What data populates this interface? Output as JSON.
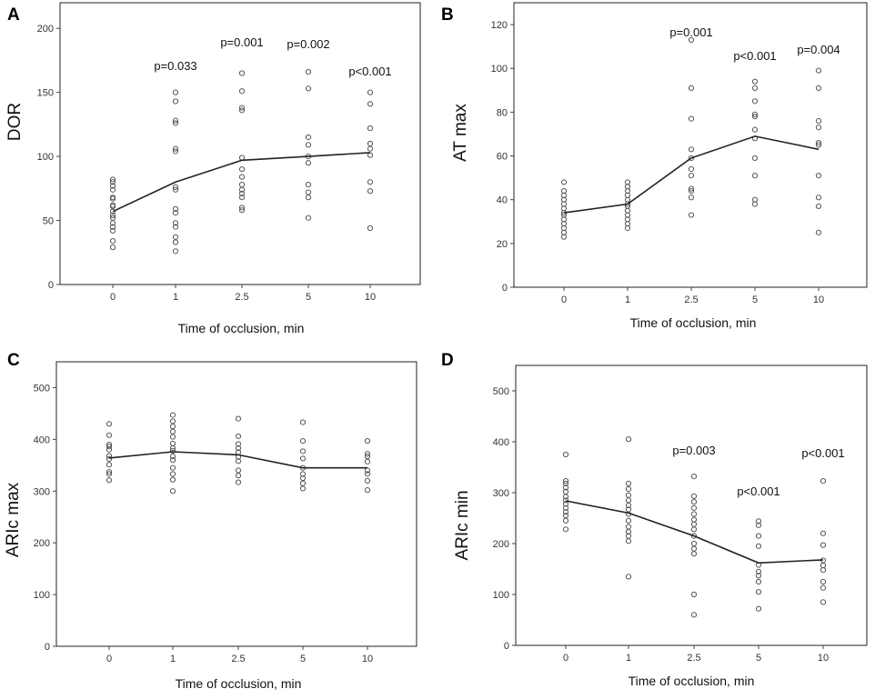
{
  "chart_data": [
    {
      "panel": "A",
      "type": "scatter",
      "xlabel": "Time of occlusion, min",
      "ylabel": "DOR",
      "categories": [
        "0",
        "1",
        "2.5",
        "5",
        "10"
      ],
      "ylim": [
        0,
        220
      ],
      "yticks": [
        0,
        50,
        100,
        150,
        200
      ],
      "points": [
        [
          29,
          34,
          42,
          45,
          48,
          52,
          54,
          57,
          61,
          62,
          67,
          68,
          74,
          77,
          80,
          82
        ],
        [
          26,
          33,
          37,
          45,
          48,
          56,
          59,
          74,
          76,
          104,
          106,
          126,
          128,
          143,
          150
        ],
        [
          58,
          60,
          68,
          71,
          74,
          78,
          84,
          90,
          99,
          136,
          138,
          151,
          165
        ],
        [
          52,
          68,
          72,
          78,
          95,
          100,
          109,
          115,
          153,
          166
        ],
        [
          44,
          73,
          80,
          101,
          106,
          110,
          122,
          141,
          150
        ]
      ],
      "mean": [
        57,
        80,
        97,
        100,
        103
      ],
      "annotations": [
        "",
        "p=0.033",
        "p=0.001",
        "p=0.002",
        "p<0.001"
      ]
    },
    {
      "panel": "B",
      "type": "scatter",
      "xlabel": "Time of occlusion, min",
      "ylabel": "AT max",
      "categories": [
        "0",
        "1",
        "2.5",
        "5",
        "10"
      ],
      "ylim": [
        0,
        130
      ],
      "yticks": [
        0,
        20,
        40,
        60,
        80,
        100,
        120
      ],
      "points": [
        [
          23,
          25,
          27,
          29,
          31,
          33,
          34,
          36,
          38,
          40,
          42,
          44,
          48
        ],
        [
          27,
          29,
          31,
          33,
          35,
          37,
          38,
          40,
          42,
          44,
          46,
          48
        ],
        [
          33,
          41,
          44,
          45,
          51,
          54,
          59,
          63,
          77,
          91,
          113
        ],
        [
          38,
          40,
          51,
          59,
          68,
          72,
          78,
          79,
          85,
          91,
          94
        ],
        [
          25,
          37,
          41,
          51,
          65,
          66,
          73,
          76,
          91,
          99
        ]
      ],
      "mean": [
        34,
        38,
        59,
        69,
        63
      ],
      "annotations": [
        "",
        "",
        "p=0.001",
        "p<0.001",
        "p=0.004"
      ]
    },
    {
      "panel": "C",
      "type": "scatter",
      "xlabel": "Time of occlusion, min",
      "ylabel": "ARIc max",
      "categories": [
        "0",
        "1",
        "2.5",
        "5",
        "10"
      ],
      "ylim": [
        0,
        550
      ],
      "yticks": [
        0,
        100,
        200,
        300,
        400,
        500
      ],
      "points": [
        [
          321,
          333,
          337,
          351,
          362,
          368,
          380,
          386,
          390,
          408,
          430
        ],
        [
          300,
          322,
          333,
          345,
          360,
          367,
          378,
          383,
          392,
          405,
          415,
          425,
          435,
          447
        ],
        [
          317,
          330,
          340,
          358,
          366,
          375,
          383,
          391,
          406,
          440
        ],
        [
          305,
          315,
          325,
          333,
          345,
          363,
          377,
          397,
          433
        ],
        [
          302,
          320,
          333,
          340,
          357,
          367,
          372,
          397
        ]
      ],
      "mean": [
        364,
        376,
        370,
        345,
        345
      ],
      "annotations": [
        "",
        "",
        "",
        "",
        ""
      ]
    },
    {
      "panel": "D",
      "type": "scatter",
      "xlabel": "Time of occlusion, min",
      "ylabel": "ARIc min",
      "categories": [
        "0",
        "1",
        "2.5",
        "5",
        "10"
      ],
      "ylim": [
        0,
        550
      ],
      "yticks": [
        0,
        100,
        200,
        300,
        400,
        500
      ],
      "points": [
        [
          228,
          245,
          255,
          262,
          270,
          278,
          285,
          292,
          302,
          310,
          318,
          323,
          375
        ],
        [
          135,
          205,
          215,
          223,
          233,
          245,
          258,
          267,
          275,
          285,
          295,
          307,
          318,
          405
        ],
        [
          60,
          100,
          180,
          190,
          200,
          215,
          228,
          238,
          247,
          258,
          270,
          282,
          293,
          332
        ],
        [
          72,
          105,
          125,
          137,
          145,
          158,
          195,
          215,
          236,
          244
        ],
        [
          85,
          113,
          125,
          148,
          157,
          167,
          197,
          220,
          323
        ]
      ],
      "mean": [
        284,
        260,
        215,
        162,
        168
      ],
      "annotations": [
        "",
        "",
        "p=0.003",
        "p<0.001",
        "p<0.001"
      ]
    }
  ]
}
